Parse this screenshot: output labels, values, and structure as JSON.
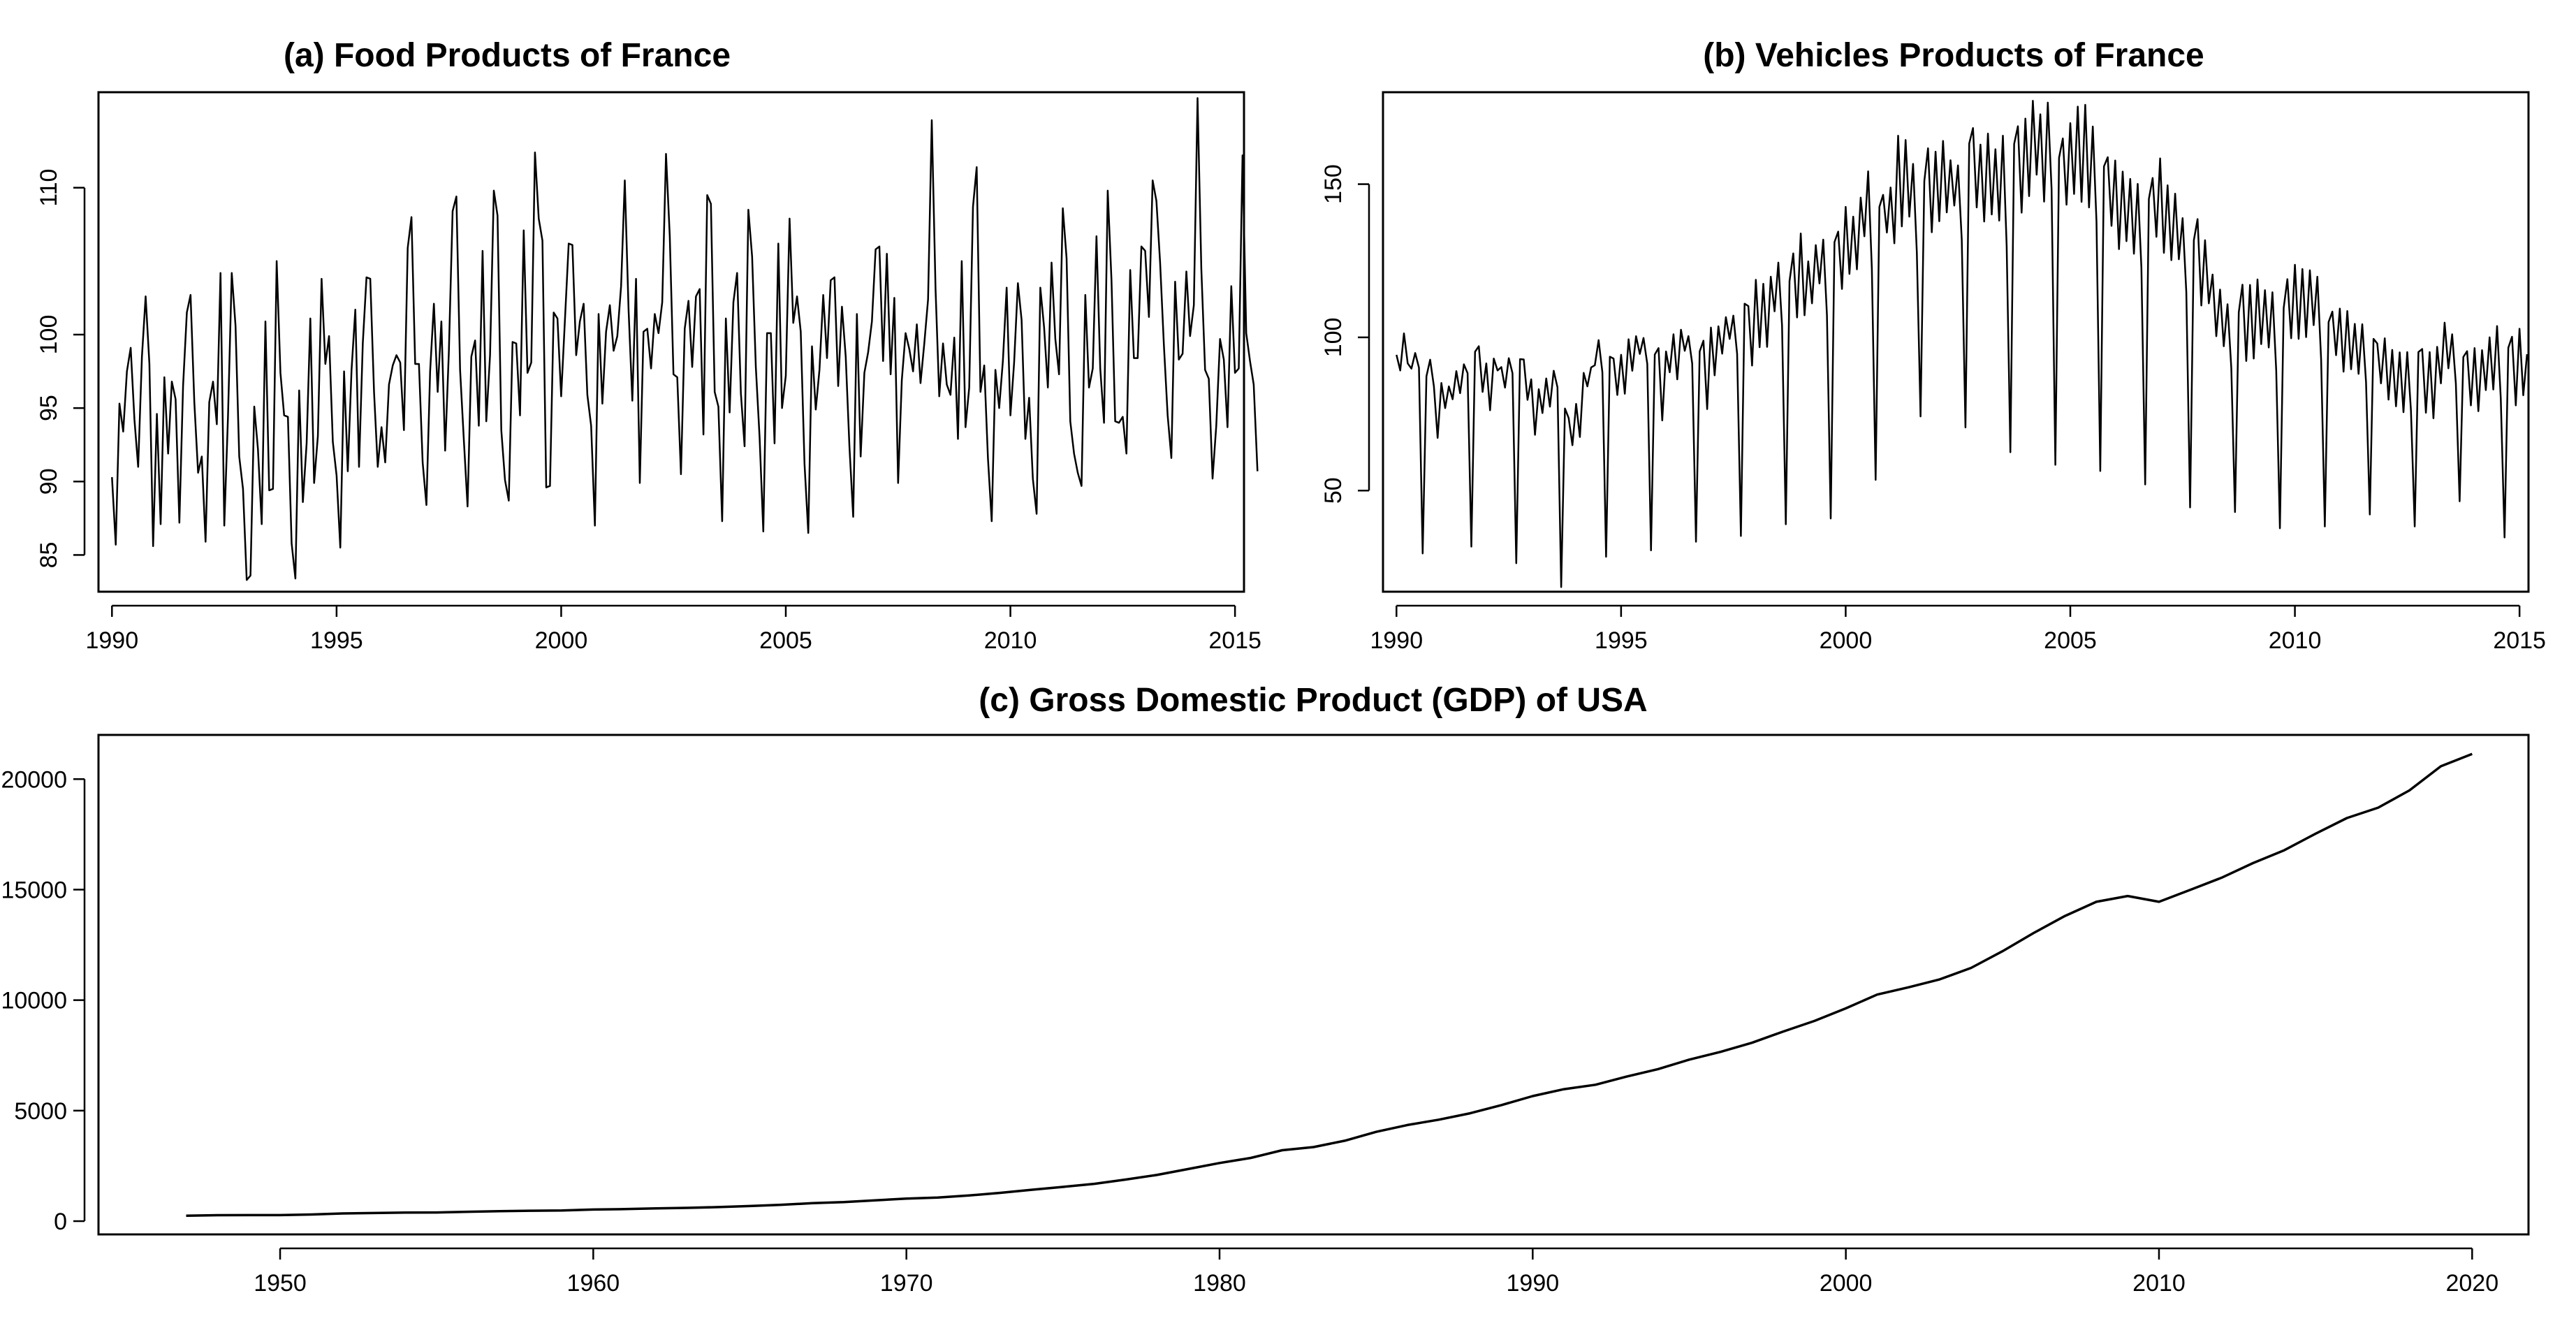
{
  "chart_data": [
    {
      "id": "food",
      "type": "line",
      "title": "(a) Food Products of France",
      "xlabel": "",
      "ylabel": "",
      "xlim": [
        1989.7,
        2015.2
      ],
      "ylim": [
        82.5,
        116.5
      ],
      "xticks": [
        1990,
        1995,
        2000,
        2005,
        2010,
        2015
      ],
      "yticks": [
        85,
        90,
        95,
        100,
        110
      ],
      "legend": "none",
      "series": [
        {
          "name": "Food Products of France",
          "start": 1990.0,
          "step": 0.0833333,
          "values": [
            90.3,
            85.7,
            95.3,
            93.4,
            97.5,
            99.1,
            94.2,
            91,
            98.5,
            102.6,
            98,
            85.6,
            94.6,
            87.1,
            97.1,
            91.9,
            96.8,
            95.6,
            87.2,
            96.5,
            101.5,
            102.7,
            95.4,
            90.6,
            91.7,
            85.9,
            95.4,
            96.8,
            93.9,
            104.2,
            87,
            94.4,
            104.2,
            100.6,
            91.7,
            89.5,
            83.3,
            83.6,
            95.1,
            92.2,
            87.1,
            100.9,
            89.4,
            89.5,
            105,
            97.4,
            94.5,
            94.4,
            85.8,
            83.4,
            96.2,
            88.6,
            92.6,
            101.1,
            89.9,
            93.1,
            103.8,
            98,
            99.9,
            92.7,
            90.4,
            85.5,
            97.5,
            90.7,
            97.6,
            101.7,
            91,
            99.4,
            103.9,
            103.8,
            96.1,
            91,
            93.7,
            91.3,
            96.6,
            97.9,
            98.6,
            98.1,
            93.5,
            105.9,
            108,
            98,
            98,
            91.3,
            88.4,
            97.5,
            102.1,
            96.1,
            100.9,
            92.1,
            98.8,
            108.4,
            109.4,
            97.6,
            92.8,
            88.3,
            98.5,
            99.6,
            93.8,
            105.7,
            94.1,
            98.6,
            109.8,
            108.1,
            93.5,
            90.1,
            88.7,
            99.5,
            99.4,
            94.5,
            107.1,
            97.4,
            98.1,
            112.4,
            107.9,
            106.4,
            89.6,
            89.7,
            101.5,
            101.1,
            95.8,
            101,
            106.2,
            106.1,
            98.6,
            100.9,
            102.1,
            95.9,
            93.8,
            87,
            101.4,
            95.3,
            100.2,
            102,
            98.9,
            99.9,
            103.3,
            110.5,
            101.7,
            95.5,
            103.8,
            89.9,
            100.2,
            100.4,
            97.7,
            101.4,
            100.1,
            102.2,
            112.3,
            106.7,
            97.3,
            97.1,
            90.5,
            100.4,
            102.3,
            97.8,
            102.6,
            103.1,
            93.2,
            109.5,
            108.9,
            96.1,
            95.1,
            87.3,
            101.1,
            94.7,
            102.2,
            104.2,
            96,
            92.4,
            108.5,
            105.3,
            97.8,
            93,
            86.6,
            100.1,
            100.1,
            92.6,
            106.2,
            95,
            97.2,
            107.9,
            100.8,
            102.6,
            100.2,
            91.2,
            86.5,
            99.2,
            94.9,
            97.6,
            102.7,
            98.4,
            103.7,
            103.9,
            96.5,
            101.9,
            98.5,
            92.4,
            87.6,
            101.4,
            91.7,
            97.4,
            98.8,
            100.9,
            105.8,
            106,
            98.2,
            105.5,
            97.3,
            102.5,
            89.9,
            96.9,
            100.1,
            99,
            97.5,
            100.7,
            96.7,
            99.4,
            102.4,
            114.6,
            103.1,
            95.8,
            99.4,
            96.6,
            95.9,
            99.8,
            92.9,
            105,
            93.7,
            96.4,
            108.7,
            111.4,
            96.1,
            97.9,
            91.6,
            87.3,
            97.6,
            95,
            98.2,
            103.2,
            94.5,
            98.1,
            103.5,
            101,
            92.9,
            95.7,
            90.2,
            87.8,
            103.2,
            100.5,
            96.4,
            104.9,
            99.7,
            97.3,
            108.6,
            105.2,
            94.1,
            91.9,
            90.6,
            89.7,
            102.7,
            96.4,
            97.7,
            106.7,
            97.7,
            94,
            109.8,
            103.7,
            94.1,
            94,
            94.4,
            91.9,
            104.4,
            98.4,
            98.4,
            106,
            105.7,
            101.2,
            110.5,
            109.1,
            104.9,
            99.3,
            94.5,
            91.6,
            103.6,
            98.3,
            98.7,
            104.3,
            99.9,
            102,
            116.1,
            104.5,
            97.6,
            97,
            90.2,
            93.8,
            99.7,
            98.3,
            93.7,
            103.3,
            97.4,
            97.7,
            112.2,
            100.1,
            98.2,
            96.6,
            90.7
          ]
        }
      ]
    },
    {
      "id": "vehicles",
      "type": "line",
      "title": "(b) Vehicles Products of France",
      "xlabel": "",
      "ylabel": "",
      "xlim": [
        1989.7,
        2015.2
      ],
      "ylim": [
        17,
        180
      ],
      "xticks": [
        1990,
        1995,
        2000,
        2005,
        2010,
        2015
      ],
      "yticks": [
        50,
        100,
        150
      ],
      "legend": "none",
      "series": [
        {
          "name": "Vehicles Products of France",
          "start": 1990.0,
          "step": 0.0833333,
          "values": [
            94.3,
            89.2,
            101.3,
            91.5,
            89.8,
            94.9,
            90.1,
            29.5,
            87.3,
            92.7,
            84,
            67.2,
            85.1,
            76.9,
            84,
            79.8,
            89,
            81.8,
            91.2,
            88.3,
            31.7,
            95.3,
            97.1,
            82.2,
            91.5,
            76.2,
            93.1,
            89.2,
            90.3,
            83.6,
            93.2,
            88.3,
            26.3,
            92.9,
            92.8,
            79.6,
            86.3,
            68.2,
            83.1,
            75.3,
            86.6,
            77.4,
            89.1,
            83.7,
            18.5,
            76.8,
            73.7,
            64.8,
            78.3,
            67.5,
            88.4,
            84,
            90.2,
            90.9,
            99.1,
            88.6,
            28.4,
            93.7,
            93.1,
            81.2,
            94.3,
            81.6,
            99.4,
            89.1,
            100.4,
            94.6,
            99.8,
            91.3,
            30.5,
            94.4,
            96.5,
            72.9,
            95.4,
            88.6,
            101,
            86.3,
            102.5,
            95.6,
            100.4,
            91.4,
            33.3,
            95.4,
            98.9,
            76.6,
            103.2,
            87.6,
            103.6,
            94.7,
            106.6,
            99.5,
            107.1,
            94.6,
            35.2,
            111,
            110.2,
            90.8,
            118.8,
            96.8,
            117.5,
            96.9,
            119.8,
            108.5,
            124.4,
            103.9,
            39,
            118.3,
            127.4,
            106.5,
            133.9,
            107.2,
            124.8,
            111.1,
            130.1,
            117.6,
            131.9,
            107.2,
            40.9,
            131.1,
            134.5,
            115.8,
            142.6,
            120.7,
            139.4,
            122.2,
            145.6,
            133,
            154.2,
            122.4,
            53.5,
            142.6,
            146.5,
            134.2,
            148.9,
            130.7,
            165.8,
            136.2,
            164.4,
            139.4,
            156.6,
            127.6,
            74.2,
            151,
            161.7,
            134.3,
            160.6,
            137.9,
            164.1,
            140.8,
            157.8,
            143,
            156.1,
            131.9,
            70.6,
            163.3,
            168.3,
            142.4,
            162.9,
            137.8,
            166.5,
            140.1,
            161.4,
            138.1,
            165.8,
            129.7,
            62.5,
            163.1,
            168.9,
            140.7,
            171.4,
            146.1,
            177.2,
            153.1,
            172.8,
            144.3,
            176.6,
            148.4,
            58.4,
            158.6,
            164.9,
            143.3,
            169.9,
            146.8,
            175.3,
            144.2,
            175.9,
            142.4,
            168.8,
            137.7,
            56.4,
            155.8,
            158.8,
            136.4,
            157.7,
            128.8,
            154.1,
            131.4,
            151.7,
            127.3,
            150.1,
            122.7,
            52,
            145.2,
            152,
            132.8,
            158.4,
            127.6,
            149.6,
            125.2,
            146.9,
            125.5,
            138.9,
            114.7,
            44.5,
            131.7,
            138.6,
            110.4,
            131.7,
            111.1,
            120.5,
            100.4,
            115.6,
            97.1,
            110.8,
            90,
            43,
            108.2,
            117.2,
            92.3,
            117.1,
            93.1,
            118.9,
            97.8,
            115.4,
            96.7,
            114.7,
            89.3,
            37.7,
            109.6,
            119,
            99.7,
            123.7,
            99.5,
            122.3,
            100.1,
            121.9,
            104,
            119.8,
            92.8,
            38.3,
            105,
            108.4,
            94.2,
            109.4,
            88.8,
            108.6,
            89.6,
            104.4,
            88.1,
            104.3,
            85.4,
            42.2,
            99.5,
            98,
            85,
            99.7,
            79.7,
            95.9,
            77.5,
            95.1,
            75.6,
            95.2,
            76.1,
            38.3,
            95.2,
            96.2,
            75.4,
            95.2,
            73.6,
            96.9,
            85,
            104.8,
            89.9,
            101,
            84.9,
            46.5,
            93.6,
            95.5,
            77.8,
            96.5,
            75.9,
            95.8,
            82.8,
            100,
            83,
            103.7,
            80.1,
            34.7,
            96.6,
            100.2,
            77.8,
            102.8,
            81.1,
            94.5
          ]
        }
      ]
    },
    {
      "id": "gdp",
      "type": "line",
      "title": "(c) Gross Domestic Product (GDP) of USA",
      "xlabel": "",
      "ylabel": "",
      "xlim": [
        1944.2,
        2021.8
      ],
      "ylim": [
        -600,
        22000
      ],
      "xticks": [
        1950,
        1960,
        1970,
        1980,
        1990,
        2000,
        2010,
        2020
      ],
      "yticks": [
        0,
        5000,
        10000,
        15000,
        20000
      ],
      "legend": "none",
      "series": [
        {
          "name": "GDP of USA",
          "start": 1947.0,
          "step": 1,
          "values": [
            244,
            270,
            271,
            273,
            301,
            347,
            368,
            390,
            393,
            425,
            448,
            470,
            480,
            526,
            545,
            577,
            600,
            635,
            683,
            741,
            814,
            860,
            940,
            1020,
            1070,
            1160,
            1280,
            1420,
            1550,
            1690,
            1880,
            2090,
            2360,
            2630,
            2860,
            3210,
            3350,
            3640,
            4040,
            4350,
            4590,
            4880,
            5250,
            5660,
            5970,
            6170,
            6540,
            6880,
            7310,
            7660,
            8070,
            8580,
            9060,
            9630,
            10250,
            10580,
            10940,
            11460,
            12210,
            13040,
            13810,
            14450,
            14710,
            14450,
            14990,
            15540,
            16200,
            16780,
            17530,
            18240,
            18710,
            19490,
            20580,
            21140
          ]
        }
      ]
    }
  ]
}
